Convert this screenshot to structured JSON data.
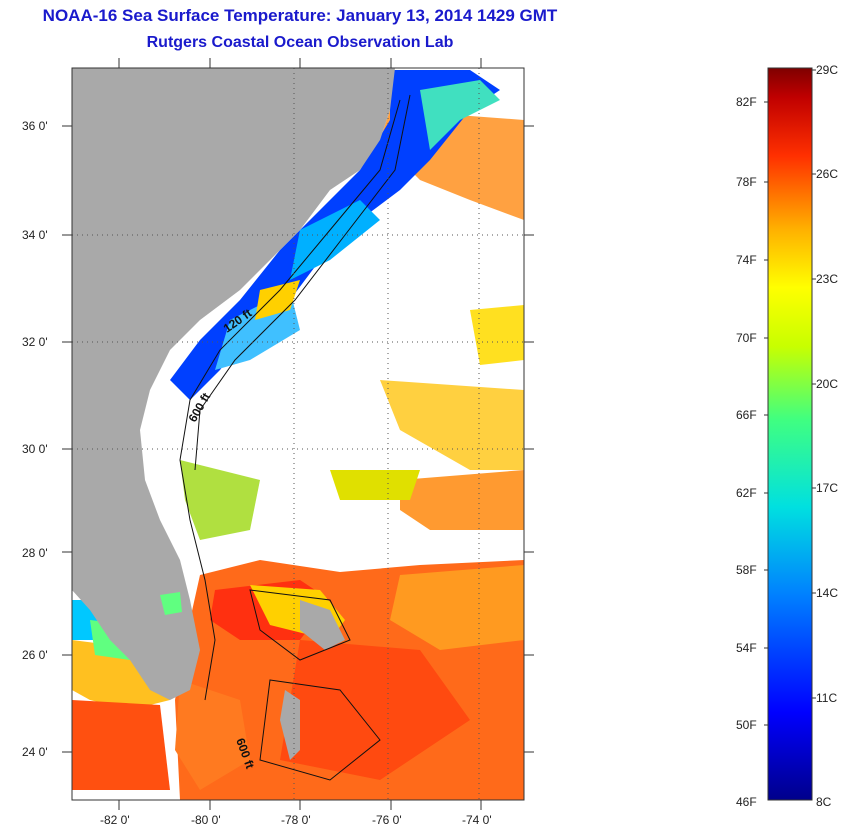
{
  "header": {
    "title": "NOAA-16 Sea Surface Temperature:  January 13, 2014 1429 GMT",
    "subtitle": "Rutgers Coastal Ocean Observation Lab"
  },
  "map": {
    "lat_labels": [
      "36 0'",
      "34 0'",
      "32 0'",
      "30 0'",
      "28 0'",
      "26 0'",
      "24 0'"
    ],
    "lon_labels": [
      "-82 0'",
      "-80 0'",
      "-78 0'",
      "-76 0'",
      "-74 0'"
    ],
    "contour_labels": [
      "120 ft",
      "600 ft",
      "600 ft"
    ],
    "colors": {
      "land": "#a9a9a9",
      "cloud": "#ffffff"
    }
  },
  "colorbar": {
    "fahrenheit_labels": [
      "82F",
      "78F",
      "74F",
      "70F",
      "66F",
      "62F",
      "58F",
      "54F",
      "50F",
      "46F"
    ],
    "celsius_labels": [
      "29C",
      "26C",
      "23C",
      "20C",
      "17C",
      "14C",
      "11C",
      "8C"
    ],
    "range_c": [
      8,
      29
    ]
  }
}
